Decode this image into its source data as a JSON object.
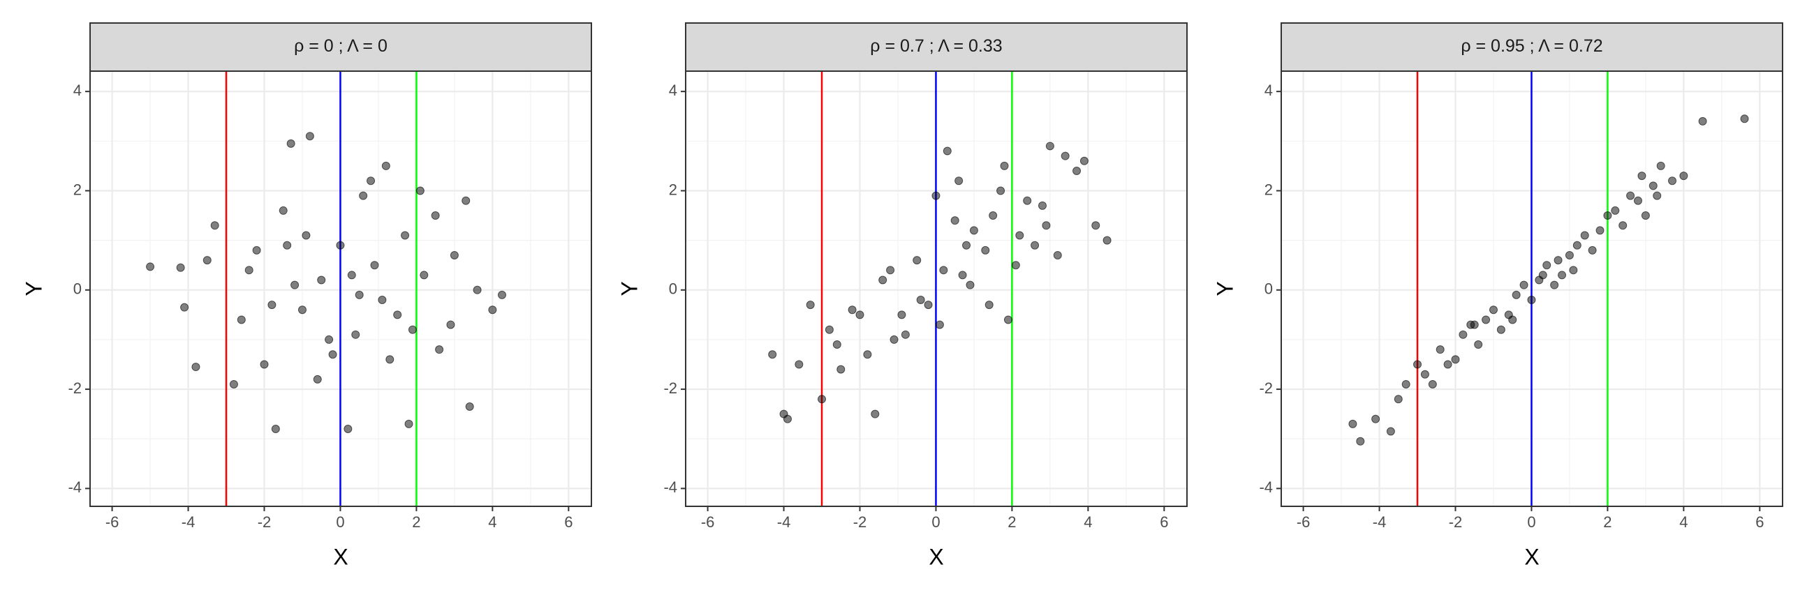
{
  "chart_data": [
    {
      "type": "scatter",
      "title": "ρ = 0 ; Λ = 0",
      "x_label": "X",
      "y_label": "Y",
      "xlim": [
        -6.58,
        6.6
      ],
      "ylim": [
        -4.36,
        4.41
      ],
      "xticks": [
        -6,
        -4,
        -2,
        0,
        2,
        4,
        6
      ],
      "yticks": [
        -4,
        -2,
        0,
        2,
        4
      ],
      "grid": true,
      "color": "#000000",
      "vlines": [
        {
          "value": -3,
          "color": "#ff0000"
        },
        {
          "value": 0,
          "color": "#0000ff"
        },
        {
          "value": 2,
          "color": "#00ff00"
        }
      ],
      "x": [
        -5.0,
        -4.2,
        -4.1,
        -3.8,
        4.25,
        4.0,
        3.4,
        -0.8,
        -1.3,
        0.2,
        -1.7,
        1.8,
        -3.3,
        -2.6,
        -2.2,
        -1.5,
        -1.0,
        -0.5,
        0.0,
        0.4,
        0.9,
        1.3,
        1.7,
        2.2,
        2.6,
        3.0,
        3.3,
        -2.8,
        -2.0,
        -1.2,
        -0.3,
        0.6,
        1.1,
        1.9,
        2.5,
        -0.9,
        0.3,
        1.5,
        -2.4,
        2.9,
        -1.8,
        -0.6,
        0.8,
        1.2,
        -3.5,
        3.6,
        -0.2,
        0.5,
        -1.4,
        2.1
      ],
      "y": [
        0.47,
        0.45,
        -0.35,
        -1.55,
        -0.1,
        -0.4,
        -2.35,
        3.1,
        2.95,
        -2.8,
        -2.8,
        -2.7,
        1.3,
        -0.6,
        0.8,
        1.6,
        -0.4,
        0.2,
        0.9,
        -0.9,
        0.5,
        -1.4,
        1.1,
        0.3,
        -1.2,
        0.7,
        1.8,
        -1.9,
        -1.5,
        0.1,
        -1.0,
        1.9,
        -0.2,
        -0.8,
        1.5,
        1.1,
        0.3,
        -0.5,
        0.4,
        -0.7,
        -0.3,
        -1.8,
        2.2,
        2.5,
        0.6,
        0.0,
        -1.3,
        -0.1,
        0.9,
        2.0
      ]
    },
    {
      "type": "scatter",
      "title": "ρ = 0.7 ; Λ = 0.33",
      "x_label": "X",
      "y_label": "Y",
      "xlim": [
        -6.58,
        6.6
      ],
      "ylim": [
        -4.36,
        4.41
      ],
      "xticks": [
        -6,
        -4,
        -2,
        0,
        2,
        4,
        6
      ],
      "yticks": [
        -4,
        -2,
        0,
        2,
        4
      ],
      "grid": true,
      "color": "#000000",
      "vlines": [
        {
          "value": -3,
          "color": "#ff0000"
        },
        {
          "value": 0,
          "color": "#0000ff"
        },
        {
          "value": 2,
          "color": "#00ff00"
        }
      ],
      "x": [
        -4.3,
        -4.0,
        -3.9,
        -3.3,
        4.5,
        4.2,
        3.9,
        -3.0,
        -2.5,
        -2.0,
        -1.6,
        -1.2,
        -0.8,
        -0.4,
        0.0,
        0.3,
        0.7,
        1.0,
        1.4,
        1.8,
        2.2,
        2.6,
        3.0,
        3.4,
        -2.8,
        -2.2,
        -1.8,
        -1.4,
        -0.9,
        -0.5,
        0.1,
        0.5,
        0.9,
        1.3,
        1.7,
        2.1,
        2.8,
        3.2,
        -1.1,
        0.2,
        1.5,
        -0.2,
        0.6,
        1.9,
        2.4,
        -3.6,
        0.8,
        -2.6,
        3.7,
        2.9
      ],
      "y": [
        -1.3,
        -2.5,
        -2.6,
        -0.3,
        1.0,
        1.3,
        2.6,
        -2.2,
        -1.6,
        -0.5,
        -2.5,
        0.4,
        -0.9,
        -0.2,
        1.9,
        2.8,
        0.3,
        1.2,
        -0.3,
        2.5,
        1.1,
        0.9,
        2.9,
        2.7,
        -0.8,
        -0.4,
        -1.3,
        0.2,
        -0.5,
        0.6,
        -0.7,
        1.4,
        0.1,
        0.8,
        2.0,
        0.5,
        1.7,
        0.7,
        -1.0,
        0.4,
        1.5,
        -0.3,
        2.2,
        -0.6,
        1.8,
        -1.5,
        0.9,
        -1.1,
        2.4,
        1.3
      ]
    },
    {
      "type": "scatter",
      "title": "ρ = 0.95 ; Λ = 0.72",
      "x_label": "X",
      "y_label": "Y",
      "xlim": [
        -6.58,
        6.6
      ],
      "ylim": [
        -4.36,
        4.41
      ],
      "xticks": [
        -6,
        -4,
        -2,
        0,
        2,
        4,
        6
      ],
      "yticks": [
        -4,
        -2,
        0,
        2,
        4
      ],
      "grid": true,
      "color": "#000000",
      "vlines": [
        {
          "value": -3,
          "color": "#ff0000"
        },
        {
          "value": 0,
          "color": "#0000ff"
        },
        {
          "value": 2,
          "color": "#00ff00"
        }
      ],
      "x": [
        -4.7,
        -4.5,
        -4.1,
        -3.7,
        -3.5,
        -3.3,
        5.6,
        4.5,
        4.0,
        3.7,
        -2.8,
        -2.4,
        -2.0,
        -1.6,
        -1.2,
        -0.8,
        -0.4,
        0.0,
        0.4,
        0.8,
        1.2,
        1.6,
        2.0,
        2.4,
        2.8,
        3.2,
        -2.6,
        -2.2,
        -1.8,
        -1.4,
        -1.0,
        -0.6,
        -0.2,
        0.2,
        0.6,
        1.0,
        1.4,
        1.8,
        2.2,
        2.6,
        3.0,
        3.4,
        -3.0,
        1.1,
        -0.5,
        0.7,
        2.9,
        -1.5,
        3.3,
        0.3
      ],
      "y": [
        -2.7,
        -3.05,
        -2.6,
        -2.85,
        -2.2,
        -1.9,
        3.45,
        3.4,
        2.3,
        2.2,
        -1.7,
        -1.2,
        -1.4,
        -0.7,
        -0.6,
        -0.8,
        -0.1,
        -0.2,
        0.5,
        0.3,
        0.9,
        0.8,
        1.5,
        1.3,
        1.8,
        2.1,
        -1.9,
        -1.5,
        -0.9,
        -1.1,
        -0.4,
        -0.5,
        0.1,
        0.2,
        0.1,
        0.7,
        1.1,
        1.2,
        1.6,
        1.9,
        1.5,
        2.5,
        -1.5,
        0.4,
        -0.6,
        0.6,
        2.3,
        -0.7,
        1.9,
        0.3
      ]
    }
  ]
}
